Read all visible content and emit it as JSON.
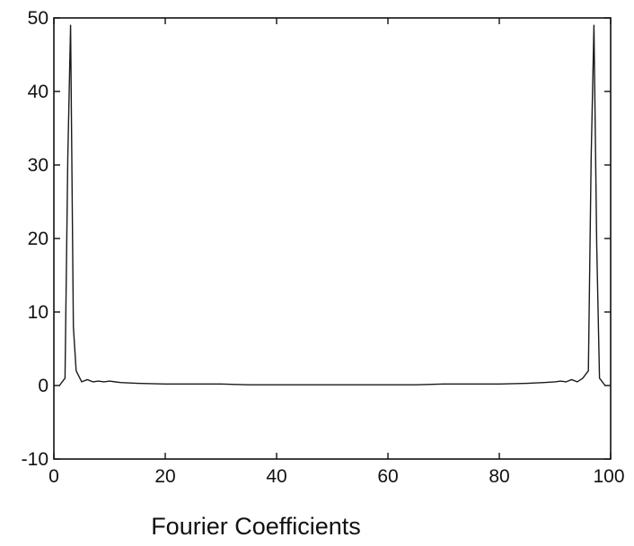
{
  "chart_data": {
    "type": "line",
    "title": "",
    "xlabel": "Fourier Coefficients",
    "ylabel": "",
    "xlim": [
      0,
      100
    ],
    "ylim": [
      -10,
      50
    ],
    "xticks": [
      0,
      20,
      40,
      60,
      80,
      100
    ],
    "yticks": [
      -10,
      0,
      10,
      20,
      30,
      40,
      50
    ],
    "xtick_labels": [
      "0",
      "20",
      "40",
      "60",
      "80",
      "100"
    ],
    "ytick_labels": [
      "-10",
      "0",
      "10",
      "20",
      "30",
      "40",
      "50"
    ],
    "grid": false,
    "legend": "none",
    "line_color": "#1a1a1a",
    "series": [
      {
        "x": [
          1,
          2,
          2.5,
          3,
          3.5,
          4,
          5,
          6,
          7,
          8,
          9,
          10,
          12,
          15,
          20,
          25,
          30,
          35,
          40,
          45,
          50,
          55,
          60,
          65,
          70,
          75,
          80,
          85,
          88,
          90,
          91,
          92,
          93,
          94,
          95,
          96,
          96.5,
          97,
          97.5,
          98,
          99
        ],
        "y": [
          0,
          1,
          31,
          49,
          8,
          2,
          0.5,
          0.8,
          0.5,
          0.6,
          0.5,
          0.6,
          0.4,
          0.3,
          0.2,
          0.2,
          0.2,
          0.1,
          0.1,
          0.1,
          0.1,
          0.1,
          0.1,
          0.1,
          0.2,
          0.2,
          0.2,
          0.3,
          0.4,
          0.5,
          0.6,
          0.5,
          0.8,
          0.5,
          1,
          2,
          31,
          49,
          19,
          1,
          0
        ]
      }
    ]
  }
}
